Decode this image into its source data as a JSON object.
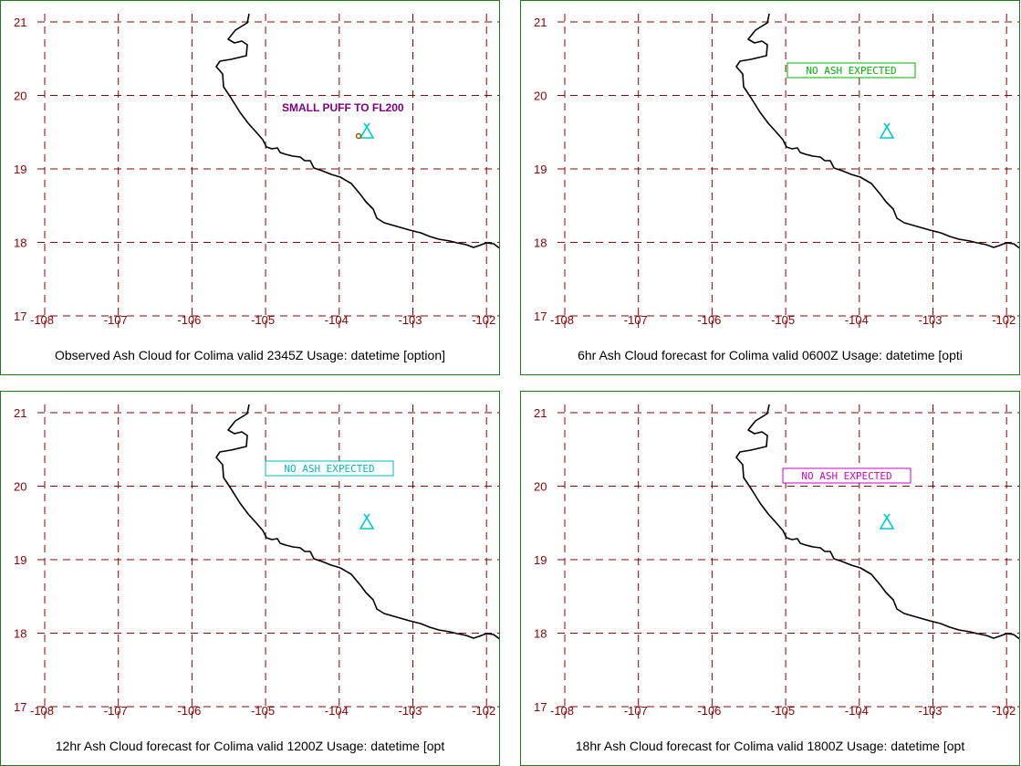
{
  "axes": {
    "lat_labels": [
      "21",
      "20",
      "19",
      "18",
      "17"
    ],
    "lon_labels": [
      "-108",
      "-107",
      "-106",
      "-105",
      "-104",
      "-103",
      "-102"
    ]
  },
  "colors": {
    "grid": "#8b0000",
    "coast": "#000000",
    "volcano": "#00cccc",
    "panel_border": "#1f7a1f"
  },
  "panels": [
    {
      "caption": "Observed Ash Cloud for Colima valid 2345Z Usage: datetime [option]",
      "annotation": {
        "text": "SMALL PUFF TO FL200",
        "color": "#800080",
        "boxed": false
      },
      "puff_marker": true
    },
    {
      "caption": "6hr Ash Cloud forecast for Colima valid 0600Z Usage: datetime [opti",
      "annotation": {
        "text": "NO ASH EXPECTED",
        "color": "#00b000",
        "boxed": true
      }
    },
    {
      "caption": "12hr Ash Cloud forecast for Colima valid 1200Z Usage: datetime [opt",
      "annotation": {
        "text": "NO ASH EXPECTED",
        "color": "#00bbbb",
        "boxed": true
      }
    },
    {
      "caption": "18hr Ash Cloud forecast for Colima valid 1800Z Usage: datetime [opt",
      "annotation": {
        "text": "NO ASH EXPECTED",
        "color": "#cc00cc",
        "boxed": true
      }
    }
  ]
}
